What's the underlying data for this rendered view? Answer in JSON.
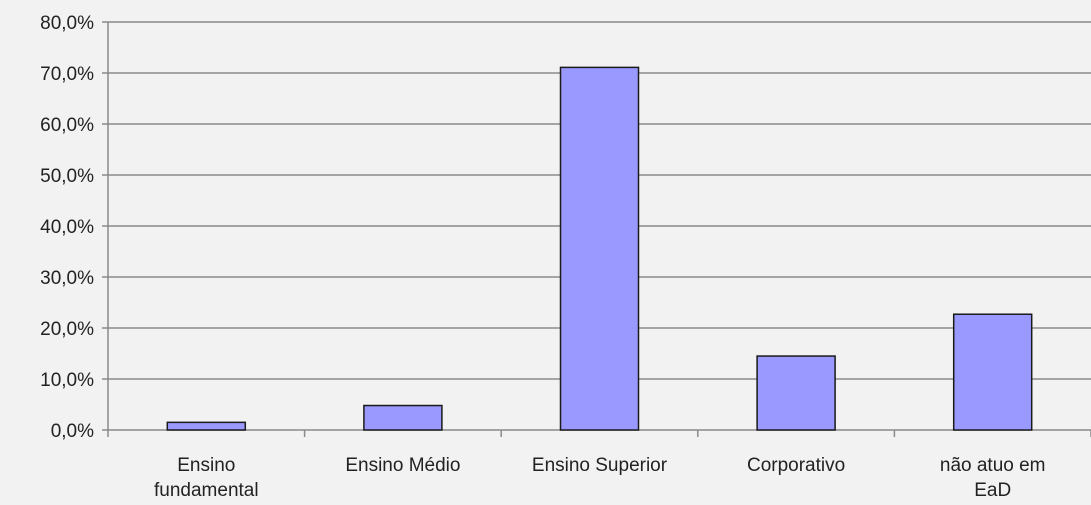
{
  "colors": {
    "background": "#f2f2f2",
    "bar_fill": "#9999ff",
    "bar_stroke": "#1a1a1a",
    "gridline": "#8a8a8a",
    "axis": "#8a8a8a"
  },
  "chart_data": {
    "type": "bar",
    "categories": [
      [
        "Ensino",
        "fundamental"
      ],
      [
        "Ensino Médio"
      ],
      [
        "Ensino Superior"
      ],
      [
        "Corporativo"
      ],
      [
        "não atuo em",
        "EaD"
      ]
    ],
    "values": [
      1.5,
      4.8,
      71.1,
      14.5,
      22.7
    ],
    "ylim": [
      0,
      80
    ],
    "yticks": [
      0,
      10,
      20,
      30,
      40,
      50,
      60,
      70,
      80
    ],
    "ytick_labels": [
      "0,0%",
      "10,0%",
      "20,0%",
      "30,0%",
      "40,0%",
      "50,0%",
      "60,0%",
      "70,0%",
      "80,0%"
    ],
    "grid": true,
    "title": "",
    "xlabel": "",
    "ylabel": ""
  }
}
